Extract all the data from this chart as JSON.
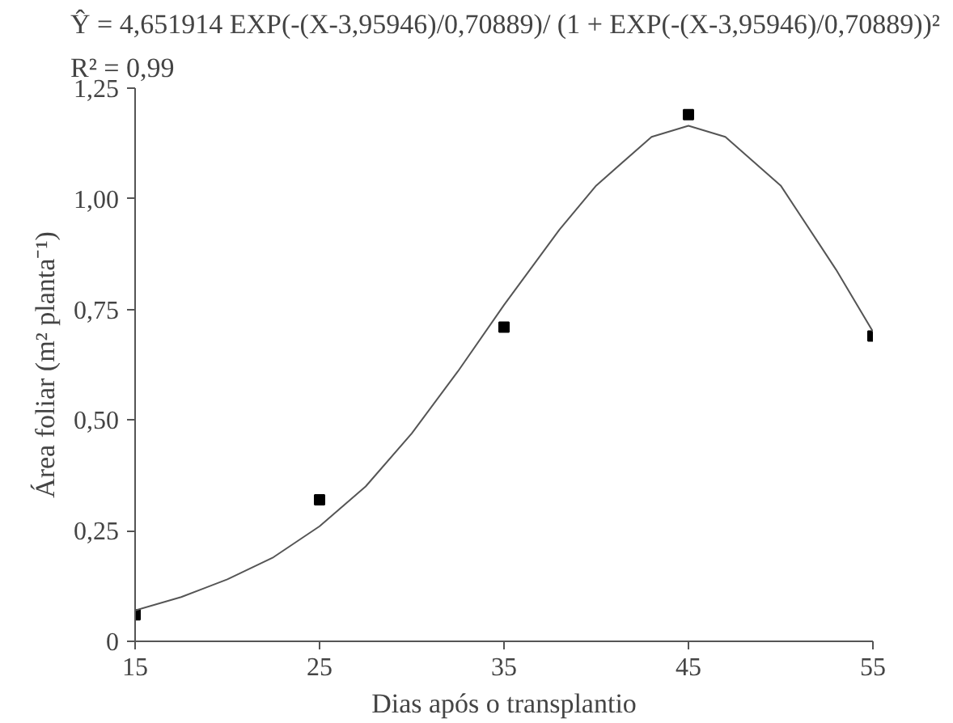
{
  "chart_data": {
    "type": "scatter",
    "xlabel": "Dias após o transplantio",
    "ylabel": "Área foliar (m² planta⁻¹)",
    "annotations": [
      "Ŷ = 4,651914 EXP(-(X-3,95946)/0,70889)/ (1 + EXP(-(X-3,95946)/0,70889))²",
      "R² = 0,99"
    ],
    "x": [
      15,
      25,
      35,
      45,
      55
    ],
    "series": [
      {
        "color": "#000000",
        "marker": "square",
        "values": [
          0.06,
          0.32,
          0.71,
          1.19,
          0.69
        ]
      },
      {
        "type": "line",
        "color": "#555555",
        "marker": "none",
        "x": [
          15,
          17.5,
          20,
          22.5,
          25,
          27.5,
          30,
          32.5,
          35,
          38,
          40,
          43,
          45,
          47,
          50,
          53,
          55
        ],
        "values": [
          0.07,
          0.1,
          0.14,
          0.19,
          0.26,
          0.35,
          0.47,
          0.61,
          0.76,
          0.93,
          1.03,
          1.14,
          1.165,
          1.14,
          1.03,
          0.84,
          0.7
        ]
      }
    ],
    "xlim": [
      15,
      55
    ],
    "ylim": [
      0,
      1.25
    ],
    "xticks": [
      15,
      25,
      35,
      45,
      55
    ],
    "yticks": [
      0,
      {
        "value": 0.25,
        "label": "0,25"
      },
      {
        "value": 0.5,
        "label": "0,50"
      },
      {
        "value": 0.75,
        "label": "0,75"
      },
      {
        "value": 1.0,
        "label": "1,00"
      },
      {
        "value": 1.25,
        "label": "1,25"
      }
    ],
    "grid": false
  }
}
